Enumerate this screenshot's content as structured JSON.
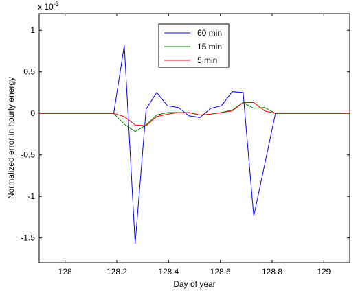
{
  "chart_data": {
    "type": "line",
    "xlabel": "Day of year",
    "ylabel": "Normalized error in hourly energy",
    "scale_label": "x 10",
    "scale_exponent": "-3",
    "xlim": [
      127.9,
      129.1
    ],
    "ylim": [
      -1.8,
      1.2
    ],
    "xticks": [
      128,
      128.2,
      128.4,
      128.6,
      128.8,
      129
    ],
    "xtick_labels": [
      "128",
      "128.2",
      "128.4",
      "128.6",
      "128.8",
      "129"
    ],
    "yticks": [
      1,
      0.5,
      0,
      -0.5,
      -1,
      -1.5
    ],
    "ytick_labels": [
      "1",
      "0.5",
      "0",
      "-0.5",
      "-1",
      "-1.5"
    ],
    "legend_position": "top-center",
    "series": [
      {
        "name": "60 min",
        "color": "#0000ff",
        "x": [
          127.9,
          128.188,
          128.229,
          128.271,
          128.313,
          128.354,
          128.396,
          128.438,
          128.479,
          128.521,
          128.563,
          128.604,
          128.646,
          128.688,
          128.729,
          128.771,
          128.813,
          129.1
        ],
        "y": [
          0,
          0,
          0.82,
          -1.57,
          0.05,
          0.25,
          0.09,
          0.07,
          -0.03,
          -0.05,
          0.06,
          0.09,
          0.26,
          0.25,
          -1.24,
          -0.62,
          0,
          0
        ]
      },
      {
        "name": "15 min",
        "color": "#008000",
        "x": [
          127.9,
          128.188,
          128.229,
          128.271,
          128.313,
          128.354,
          128.396,
          128.438,
          128.479,
          128.521,
          128.563,
          128.604,
          128.646,
          128.688,
          128.729,
          128.771,
          128.813,
          129.1
        ],
        "y": [
          0,
          0,
          -0.13,
          -0.22,
          -0.14,
          -0.02,
          0.01,
          0.01,
          0.01,
          -0.02,
          -0.01,
          0.01,
          0.04,
          0.13,
          0.06,
          0.07,
          0,
          0
        ]
      },
      {
        "name": "5 min",
        "color": "#ff0000",
        "x": [
          127.9,
          128.188,
          128.229,
          128.271,
          128.313,
          128.354,
          128.396,
          128.438,
          128.479,
          128.521,
          128.563,
          128.604,
          128.646,
          128.688,
          128.729,
          128.771,
          128.813,
          129.1
        ],
        "y": [
          0,
          0,
          -0.04,
          -0.14,
          -0.15,
          -0.04,
          -0.01,
          0.01,
          0.01,
          -0.02,
          -0.01,
          0.01,
          0.03,
          0.13,
          0.13,
          0.03,
          0,
          0
        ]
      }
    ]
  }
}
